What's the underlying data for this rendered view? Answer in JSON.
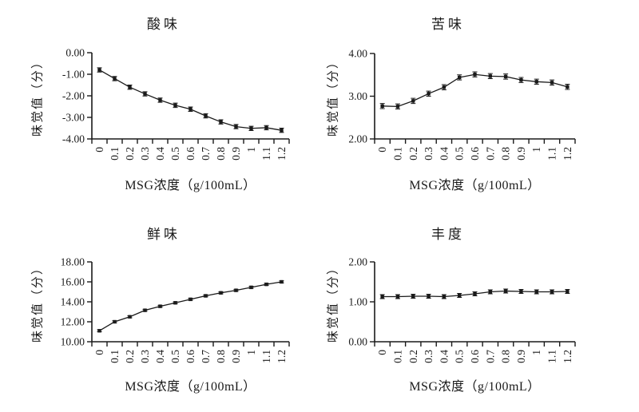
{
  "figure": {
    "background_color": "#ffffff",
    "ink_color": "#1a1a1a"
  },
  "chart_data": [
    {
      "id": "sour",
      "type": "line",
      "title": "酸味",
      "xlabel": "MSG浓度（g/100mL）",
      "ylabel": "味觉值（分）",
      "legend": "none",
      "grid": false,
      "x_categories": [
        "0",
        "0.1",
        "0.2",
        "0.3",
        "0.4",
        "0.5",
        "0.6",
        "0.7",
        "0.8",
        "0.9",
        "1",
        "1.1",
        "1.2"
      ],
      "values": [
        -0.8,
        -1.2,
        -1.6,
        -1.91,
        -2.2,
        -2.44,
        -2.62,
        -2.93,
        -3.21,
        -3.43,
        -3.51,
        -3.48,
        -3.6
      ],
      "error": 0.1,
      "ylim": [
        -4,
        0
      ],
      "yticks": [
        0,
        -1,
        -2,
        -3,
        -4
      ],
      "ytick_labels": [
        "0.00",
        "-1.00",
        "-2.00",
        "-3.00",
        "-4.00"
      ],
      "marker": "square",
      "line_color": "#1a1a1a"
    },
    {
      "id": "bitter",
      "type": "line",
      "title": "苦味",
      "xlabel": "MSG浓度（g/100mL）",
      "ylabel": "味觉值（分）",
      "legend": "none",
      "grid": false,
      "x_categories": [
        "0",
        "0.1",
        "0.2",
        "0.3",
        "0.4",
        "0.5",
        "0.6",
        "0.7",
        "0.8",
        "0.9",
        "1",
        "1.1",
        "1.2"
      ],
      "values": [
        2.77,
        2.76,
        2.89,
        3.06,
        3.21,
        3.44,
        3.51,
        3.47,
        3.46,
        3.38,
        3.34,
        3.32,
        3.22
      ],
      "error": 0.06,
      "ylim": [
        2,
        4
      ],
      "yticks": [
        4,
        3,
        2
      ],
      "ytick_labels": [
        "4.00",
        "3.00",
        "2.00"
      ],
      "marker": "square",
      "line_color": "#1a1a1a"
    },
    {
      "id": "umami",
      "type": "line",
      "title": "鲜味",
      "xlabel": "MSG浓度（g/100mL）",
      "ylabel": "味觉值（分）",
      "legend": "none",
      "grid": false,
      "x_categories": [
        "0",
        "0.1",
        "0.2",
        "0.3",
        "0.4",
        "0.5",
        "0.6",
        "0.7",
        "0.8",
        "0.9",
        "1",
        "1.1",
        "1.2"
      ],
      "values": [
        11.1,
        12.0,
        12.5,
        13.15,
        13.55,
        13.9,
        14.25,
        14.6,
        14.9,
        15.15,
        15.45,
        15.75,
        16.0
      ],
      "error": 0.1,
      "ylim": [
        10,
        18
      ],
      "yticks": [
        18,
        16,
        14,
        12,
        10
      ],
      "ytick_labels": [
        "18.00",
        "16.00",
        "14.00",
        "12.00",
        "10.00"
      ],
      "marker": "square",
      "line_color": "#1a1a1a"
    },
    {
      "id": "richness",
      "type": "line",
      "title": "丰度",
      "xlabel": "MSG浓度（g/100mL）",
      "ylabel": "味觉值（分）",
      "legend": "none",
      "grid": false,
      "x_categories": [
        "0",
        "0.1",
        "0.2",
        "0.3",
        "0.4",
        "0.5",
        "0.6",
        "0.7",
        "0.8",
        "0.9",
        "1",
        "1.1",
        "1.2"
      ],
      "values": [
        1.13,
        1.13,
        1.14,
        1.14,
        1.13,
        1.16,
        1.2,
        1.25,
        1.27,
        1.26,
        1.25,
        1.25,
        1.26
      ],
      "error": 0.05,
      "ylim": [
        0,
        2
      ],
      "yticks": [
        2,
        1,
        0
      ],
      "ytick_labels": [
        "2.00",
        "1.00",
        "0.00"
      ],
      "marker": "square",
      "line_color": "#1a1a1a"
    }
  ]
}
